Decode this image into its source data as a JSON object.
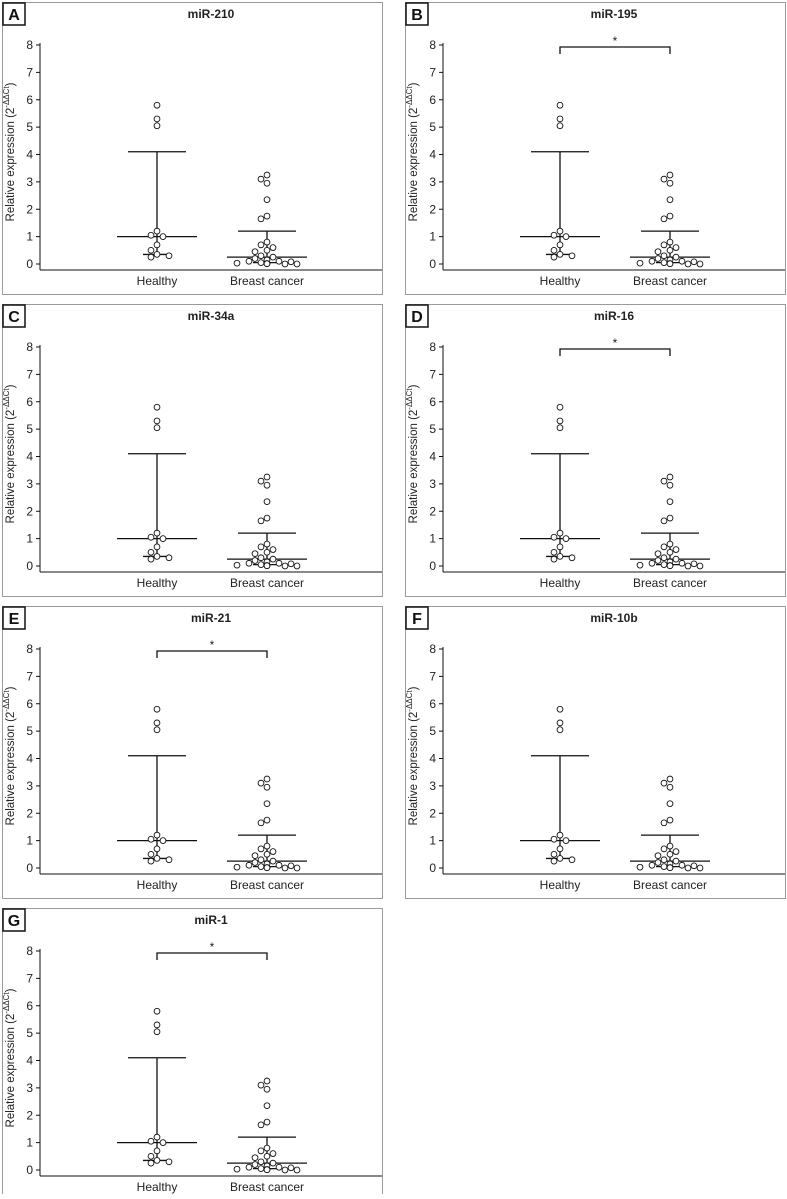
{
  "figure": {
    "y_axis_label": "Relative expression (2",
    "y_axis_superscript": "-ΔΔCt",
    "y_axis_label_close": ")",
    "category_labels": [
      "Healthy",
      "Breast cancer"
    ]
  },
  "chart_data": [
    {
      "type": "scatter",
      "letter": "A",
      "title": "miR-210",
      "xlabel": "",
      "ylabel": "Relative expression (2^-ΔΔCt)",
      "categories": [
        "Healthy",
        "Breast cancer"
      ],
      "ylim": [
        0,
        8
      ],
      "yticks": [
        0,
        1,
        2,
        3,
        4,
        5,
        6,
        7,
        8
      ],
      "significance": null,
      "series": [
        {
          "name": "Healthy",
          "points": [
            5.8,
            5.3,
            5.05,
            1.2,
            1.05,
            1.0,
            0.7,
            0.5,
            0.35,
            0.25,
            0.3
          ],
          "median": 1.0,
          "q1": 0.35,
          "q3": 4.1
        },
        {
          "name": "Breast cancer",
          "points": [
            3.25,
            3.1,
            2.95,
            2.35,
            1.75,
            1.65,
            0.8,
            0.7,
            0.6,
            0.5,
            0.45,
            0.3,
            0.25,
            0.2,
            0.15,
            0.1,
            0.1,
            0.08,
            0.05,
            0.03,
            0.02,
            0.01,
            0.0,
            0.0
          ],
          "median": 0.25,
          "q1": 0.05,
          "q3": 1.2
        }
      ]
    },
    {
      "type": "scatter",
      "letter": "B",
      "title": "miR-195",
      "xlabel": "",
      "ylabel": "Relative expression (2^-ΔΔCt)",
      "categories": [
        "Healthy",
        "Breast cancer"
      ],
      "ylim": [
        0,
        8
      ],
      "yticks": [
        0,
        1,
        2,
        3,
        4,
        5,
        6,
        7,
        8
      ],
      "significance": "*",
      "series": [
        {
          "name": "Healthy",
          "points": [
            5.8,
            5.3,
            5.05,
            1.2,
            1.05,
            1.0,
            0.7,
            0.5,
            0.35,
            0.25,
            0.3
          ],
          "median": 1.0,
          "q1": 0.35,
          "q3": 4.1
        },
        {
          "name": "Breast cancer",
          "points": [
            3.25,
            3.1,
            2.95,
            2.35,
            1.75,
            1.65,
            0.8,
            0.7,
            0.6,
            0.5,
            0.45,
            0.3,
            0.25,
            0.2,
            0.15,
            0.1,
            0.1,
            0.08,
            0.05,
            0.03,
            0.02,
            0.01,
            0.0,
            0.0
          ],
          "median": 0.25,
          "q1": 0.05,
          "q3": 1.2
        }
      ]
    },
    {
      "type": "scatter",
      "letter": "C",
      "title": "miR-34a",
      "xlabel": "",
      "ylabel": "Relative expression (2^-ΔΔCt)",
      "categories": [
        "Healthy",
        "Breast cancer"
      ],
      "ylim": [
        0,
        8
      ],
      "yticks": [
        0,
        1,
        2,
        3,
        4,
        5,
        6,
        7,
        8
      ],
      "significance": null,
      "series": [
        {
          "name": "Healthy",
          "points": [
            5.8,
            5.3,
            5.05,
            1.2,
            1.05,
            1.0,
            0.7,
            0.5,
            0.35,
            0.25,
            0.3
          ],
          "median": 1.0,
          "q1": 0.35,
          "q3": 4.1
        },
        {
          "name": "Breast cancer",
          "points": [
            3.25,
            3.1,
            2.95,
            2.35,
            1.75,
            1.65,
            0.8,
            0.7,
            0.6,
            0.5,
            0.45,
            0.3,
            0.25,
            0.2,
            0.15,
            0.1,
            0.1,
            0.08,
            0.05,
            0.03,
            0.02,
            0.01,
            0.0,
            0.0
          ],
          "median": 0.25,
          "q1": 0.05,
          "q3": 1.2
        }
      ]
    },
    {
      "type": "scatter",
      "letter": "D",
      "title": "miR-16",
      "xlabel": "",
      "ylabel": "Relative expression (2^-ΔΔCt)",
      "categories": [
        "Healthy",
        "Breast cancer"
      ],
      "ylim": [
        0,
        8
      ],
      "yticks": [
        0,
        1,
        2,
        3,
        4,
        5,
        6,
        7,
        8
      ],
      "significance": "*",
      "series": [
        {
          "name": "Healthy",
          "points": [
            5.8,
            5.3,
            5.05,
            1.2,
            1.05,
            1.0,
            0.7,
            0.5,
            0.35,
            0.25,
            0.3
          ],
          "median": 1.0,
          "q1": 0.35,
          "q3": 4.1
        },
        {
          "name": "Breast cancer",
          "points": [
            3.25,
            3.1,
            2.95,
            2.35,
            1.75,
            1.65,
            0.8,
            0.7,
            0.6,
            0.5,
            0.45,
            0.3,
            0.25,
            0.2,
            0.15,
            0.1,
            0.1,
            0.08,
            0.05,
            0.03,
            0.02,
            0.01,
            0.0,
            0.0
          ],
          "median": 0.25,
          "q1": 0.05,
          "q3": 1.2
        }
      ]
    },
    {
      "type": "scatter",
      "letter": "E",
      "title": "miR-21",
      "xlabel": "",
      "ylabel": "Relative expression (2^-ΔΔCt)",
      "categories": [
        "Healthy",
        "Breast cancer"
      ],
      "ylim": [
        0,
        8
      ],
      "yticks": [
        0,
        1,
        2,
        3,
        4,
        5,
        6,
        7,
        8
      ],
      "significance": "*",
      "series": [
        {
          "name": "Healthy",
          "points": [
            5.8,
            5.3,
            5.05,
            1.2,
            1.05,
            1.0,
            0.7,
            0.5,
            0.35,
            0.25,
            0.3
          ],
          "median": 1.0,
          "q1": 0.35,
          "q3": 4.1
        },
        {
          "name": "Breast cancer",
          "points": [
            3.25,
            3.1,
            2.95,
            2.35,
            1.75,
            1.65,
            0.8,
            0.7,
            0.6,
            0.5,
            0.45,
            0.3,
            0.25,
            0.2,
            0.15,
            0.1,
            0.1,
            0.08,
            0.05,
            0.03,
            0.02,
            0.01,
            0.0,
            0.0
          ],
          "median": 0.25,
          "q1": 0.05,
          "q3": 1.2
        }
      ]
    },
    {
      "type": "scatter",
      "letter": "F",
      "title": "miR-10b",
      "xlabel": "",
      "ylabel": "Relative expression (2^-ΔΔCt)",
      "categories": [
        "Healthy",
        "Breast cancer"
      ],
      "ylim": [
        0,
        8
      ],
      "yticks": [
        0,
        1,
        2,
        3,
        4,
        5,
        6,
        7,
        8
      ],
      "significance": null,
      "series": [
        {
          "name": "Healthy",
          "points": [
            5.8,
            5.3,
            5.05,
            1.2,
            1.05,
            1.0,
            0.7,
            0.5,
            0.35,
            0.25,
            0.3
          ],
          "median": 1.0,
          "q1": 0.35,
          "q3": 4.1
        },
        {
          "name": "Breast cancer",
          "points": [
            3.25,
            3.1,
            2.95,
            2.35,
            1.75,
            1.65,
            0.8,
            0.7,
            0.6,
            0.5,
            0.45,
            0.3,
            0.25,
            0.2,
            0.15,
            0.1,
            0.1,
            0.08,
            0.05,
            0.03,
            0.02,
            0.01,
            0.0,
            0.0
          ],
          "median": 0.25,
          "q1": 0.05,
          "q3": 1.2
        }
      ]
    },
    {
      "type": "scatter",
      "letter": "G",
      "title": "miR-1",
      "xlabel": "",
      "ylabel": "Relative expression (2^-ΔΔCt)",
      "categories": [
        "Healthy",
        "Breast cancer"
      ],
      "ylim": [
        0,
        8
      ],
      "yticks": [
        0,
        1,
        2,
        3,
        4,
        5,
        6,
        7,
        8
      ],
      "significance": "*",
      "series": [
        {
          "name": "Healthy",
          "points": [
            5.8,
            5.3,
            5.05,
            1.2,
            1.05,
            1.0,
            0.7,
            0.5,
            0.35,
            0.25,
            0.3
          ],
          "median": 1.0,
          "q1": 0.35,
          "q3": 4.1
        },
        {
          "name": "Breast cancer",
          "points": [
            3.25,
            3.1,
            2.95,
            2.35,
            1.75,
            1.65,
            0.8,
            0.7,
            0.6,
            0.5,
            0.45,
            0.3,
            0.25,
            0.2,
            0.15,
            0.1,
            0.1,
            0.08,
            0.05,
            0.03,
            0.02,
            0.01,
            0.0,
            0.0
          ],
          "median": 0.25,
          "q1": 0.05,
          "q3": 1.2
        }
      ]
    }
  ]
}
